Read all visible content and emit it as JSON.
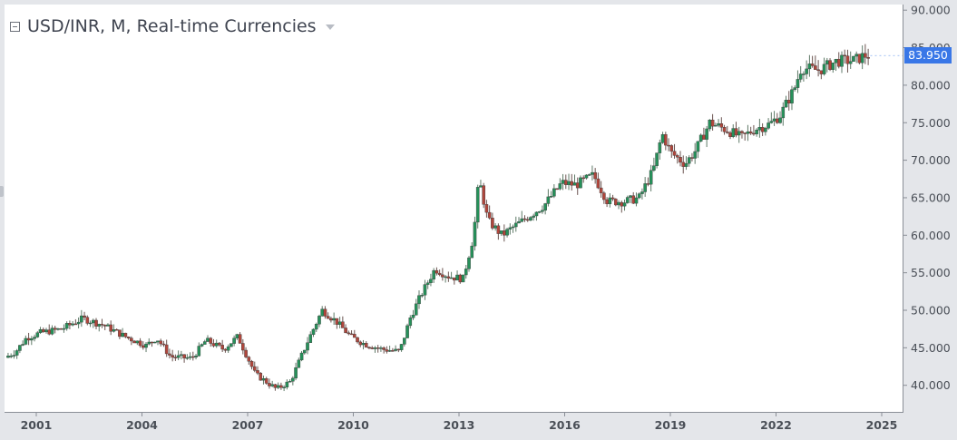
{
  "legend": {
    "title": "USD/INR, M, Real-time Currencies"
  },
  "price_tag": {
    "value": "83.950",
    "color": "#3977e7"
  },
  "colors": {
    "up": "#26915a",
    "down": "#b0463c",
    "axis_text": "#4a4f57",
    "axis_line": "#8a8e96",
    "background": "#ffffff",
    "frame": "#e4e6ea"
  },
  "chart_data": {
    "type": "candlestick",
    "title": "USD/INR, M, Real-time Currencies",
    "y_ticks": [
      "90.000",
      "85.000",
      "80.000",
      "75.000",
      "70.000",
      "65.000",
      "60.000",
      "55.000",
      "50.000",
      "45.000",
      "40.000"
    ],
    "x_ticks": [
      "2001",
      "2004",
      "2007",
      "2010",
      "2013",
      "2016",
      "2019",
      "2022",
      "2025"
    ],
    "ylim": [
      36.5,
      91
    ],
    "xlim": [
      2000.1,
      2025.5
    ],
    "grid": false,
    "last_value": 83.95,
    "series": [
      {
        "name": "USD/INR",
        "points": [
          [
            2000.2,
            43.7
          ],
          [
            2000.5,
            44.5
          ],
          [
            2000.8,
            46.3
          ],
          [
            2001.2,
            47.0
          ],
          [
            2001.8,
            47.5
          ],
          [
            2002.4,
            48.9
          ],
          [
            2003.0,
            48.0
          ],
          [
            2003.6,
            46.5
          ],
          [
            2004.2,
            45.3
          ],
          [
            2004.5,
            46.3
          ],
          [
            2004.9,
            43.8
          ],
          [
            2005.5,
            43.6
          ],
          [
            2005.9,
            46.0
          ],
          [
            2006.4,
            44.8
          ],
          [
            2006.8,
            46.5
          ],
          [
            2007.3,
            41.5
          ],
          [
            2007.9,
            39.5
          ],
          [
            2008.3,
            40.5
          ],
          [
            2008.8,
            46.0
          ],
          [
            2009.2,
            50.0
          ],
          [
            2009.6,
            48.5
          ],
          [
            2010.0,
            46.5
          ],
          [
            2010.4,
            45.5
          ],
          [
            2010.9,
            44.8
          ],
          [
            2011.4,
            44.5
          ],
          [
            2011.7,
            49.0
          ],
          [
            2012.0,
            52.0
          ],
          [
            2012.4,
            55.5
          ],
          [
            2012.8,
            54.5
          ],
          [
            2013.2,
            54.2
          ],
          [
            2013.5,
            60.0
          ],
          [
            2013.65,
            67.5
          ],
          [
            2013.9,
            62.0
          ],
          [
            2014.3,
            60.0
          ],
          [
            2014.6,
            61.0
          ],
          [
            2015.0,
            62.3
          ],
          [
            2015.5,
            64.0
          ],
          [
            2016.0,
            67.0
          ],
          [
            2016.4,
            66.7
          ],
          [
            2016.9,
            68.0
          ],
          [
            2017.3,
            64.5
          ],
          [
            2017.8,
            64.5
          ],
          [
            2018.2,
            65.0
          ],
          [
            2018.6,
            68.7
          ],
          [
            2018.85,
            73.5
          ],
          [
            2019.1,
            71.0
          ],
          [
            2019.5,
            69.5
          ],
          [
            2019.8,
            71.3
          ],
          [
            2020.2,
            75.0
          ],
          [
            2020.7,
            74.0
          ],
          [
            2021.1,
            73.0
          ],
          [
            2021.5,
            74.2
          ],
          [
            2021.9,
            74.8
          ],
          [
            2022.2,
            76.0
          ],
          [
            2022.6,
            79.5
          ],
          [
            2022.8,
            82.3
          ],
          [
            2023.3,
            82.0
          ],
          [
            2023.8,
            83.2
          ],
          [
            2024.3,
            83.3
          ],
          [
            2024.6,
            83.95
          ]
        ]
      }
    ]
  }
}
